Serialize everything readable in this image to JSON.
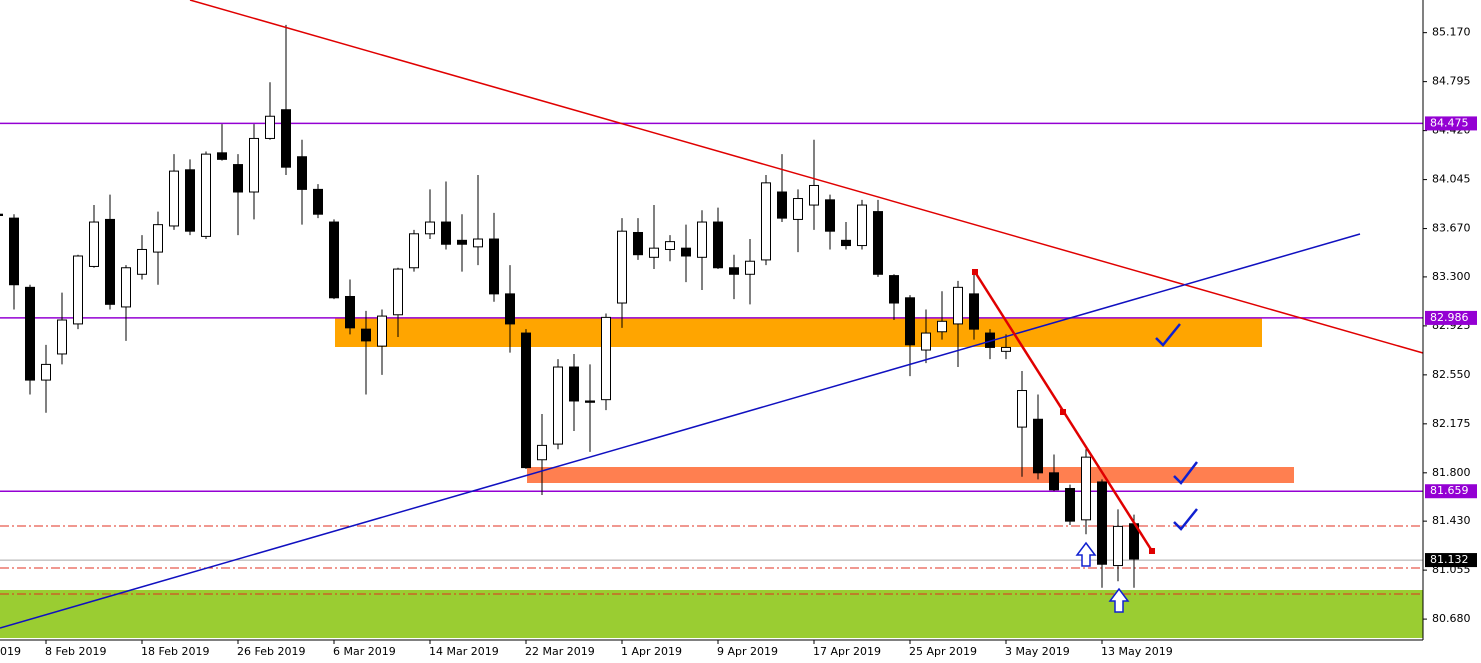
{
  "chart_data": {
    "type": "candlestick",
    "up_color": "#ffffff",
    "down_color": "#000000",
    "categories": [
      "019",
      null,
      null,
      "8 Feb 2019",
      null,
      null,
      null,
      null,
      null,
      "18 Feb 2019",
      null,
      null,
      null,
      null,
      null,
      "26 Feb 2019",
      null,
      null,
      null,
      null,
      null,
      "6 Mar 2019",
      null,
      null,
      null,
      null,
      null,
      "14 Mar 2019",
      null,
      null,
      null,
      null,
      null,
      "22 Mar 2019",
      null,
      null,
      null,
      null,
      null,
      "1 Apr 2019",
      null,
      null,
      null,
      null,
      null,
      "9 Apr 2019",
      null,
      null,
      null,
      null,
      null,
      "17 Apr 2019",
      null,
      null,
      null,
      null,
      null,
      "25 Apr 2019",
      null,
      null,
      null,
      null,
      null,
      "3 May 2019",
      null,
      null,
      null,
      null,
      null,
      "13 May 2019",
      null,
      null
    ],
    "open": [
      83.78,
      83.75,
      83.22,
      82.51,
      82.71,
      82.94,
      83.38,
      83.74,
      83.07,
      83.32,
      83.49,
      83.69,
      84.12,
      83.61,
      84.25,
      84.16,
      83.95,
      84.36,
      84.58,
      84.22,
      83.97,
      83.72,
      83.15,
      82.9,
      82.77,
      83.01,
      83.37,
      83.63,
      83.72,
      83.58,
      83.53,
      83.59,
      83.17,
      82.87,
      81.9,
      82.02,
      82.61,
      82.35,
      82.36,
      83.1,
      83.64,
      83.45,
      83.51,
      83.52,
      83.45,
      83.72,
      83.37,
      83.32,
      83.43,
      83.95,
      83.74,
      83.85,
      83.89,
      83.58,
      83.54,
      83.8,
      83.31,
      83.14,
      82.74,
      82.88,
      82.94,
      83.17,
      82.87,
      82.73,
      82.15,
      82.21,
      81.8,
      81.68,
      81.44,
      81.73,
      81.09,
      81.41
    ],
    "high": [
      83.79,
      83.78,
      83.24,
      82.78,
      83.18,
      83.47,
      83.85,
      83.93,
      83.39,
      83.62,
      83.8,
      84.24,
      84.2,
      84.26,
      84.47,
      84.24,
      84.47,
      84.79,
      85.23,
      84.35,
      84.01,
      83.74,
      83.28,
      83.04,
      83.05,
      83.37,
      83.66,
      83.97,
      84.03,
      83.78,
      84.08,
      83.79,
      83.39,
      82.9,
      82.25,
      82.67,
      82.71,
      82.63,
      83.02,
      83.75,
      83.75,
      83.85,
      83.62,
      83.7,
      83.81,
      83.83,
      83.47,
      83.59,
      84.08,
      84.24,
      83.97,
      84.35,
      83.93,
      83.72,
      83.89,
      83.89,
      83.32,
      83.16,
      83.05,
      83.19,
      83.27,
      83.32,
      82.9,
      82.86,
      82.58,
      82.4,
      81.94,
      81.71,
      81.98,
      81.75,
      81.52,
      81.48
    ],
    "low": [
      83.75,
      83.05,
      82.4,
      82.26,
      82.63,
      82.9,
      83.37,
      83.05,
      82.81,
      83.28,
      83.24,
      83.66,
      83.62,
      83.59,
      84.19,
      83.62,
      83.74,
      84.35,
      84.08,
      83.7,
      83.75,
      83.13,
      82.86,
      82.4,
      82.55,
      82.84,
      83.34,
      83.59,
      83.51,
      83.34,
      83.39,
      83.11,
      82.72,
      81.83,
      81.63,
      81.98,
      82.12,
      81.96,
      82.28,
      82.91,
      83.43,
      83.36,
      83.42,
      83.26,
      83.2,
      83.36,
      83.13,
      83.09,
      83.39,
      83.72,
      83.49,
      83.66,
      83.51,
      83.51,
      83.51,
      83.3,
      82.97,
      82.54,
      82.64,
      82.82,
      82.61,
      82.82,
      82.67,
      82.67,
      81.77,
      81.75,
      81.66,
      81.4,
      81.33,
      80.92,
      80.97,
      80.92
    ],
    "close": [
      83.77,
      83.24,
      82.51,
      82.63,
      82.97,
      83.46,
      83.72,
      83.09,
      83.37,
      83.51,
      83.7,
      84.11,
      83.65,
      84.24,
      84.2,
      83.95,
      84.36,
      84.53,
      84.14,
      83.97,
      83.78,
      83.14,
      82.91,
      82.81,
      83.0,
      83.36,
      83.63,
      83.72,
      83.55,
      83.55,
      83.59,
      83.17,
      82.94,
      81.84,
      82.01,
      82.61,
      82.35,
      82.34,
      82.99,
      83.65,
      83.47,
      83.52,
      83.57,
      83.46,
      83.72,
      83.37,
      83.32,
      83.42,
      84.02,
      83.75,
      83.9,
      84.0,
      83.65,
      83.54,
      83.85,
      83.32,
      83.1,
      82.78,
      82.87,
      82.96,
      83.22,
      82.9,
      82.76,
      82.76,
      82.43,
      81.8,
      81.67,
      81.43,
      81.92,
      81.1,
      81.39,
      81.14
    ],
    "ylim": [
      80.52,
      85.42
    ],
    "yticks": [
      {
        "value": 85.17,
        "label": "85.170"
      },
      84.795,
      {
        "value": 84.42,
        "label": "84.420"
      },
      84.045,
      {
        "value": 83.67,
        "label": "83.670"
      },
      {
        "value": 83.3,
        "label": "83.300"
      },
      82.925,
      {
        "value": 82.55,
        "label": "82.550"
      },
      82.175,
      {
        "value": 81.8,
        "label": "81.800"
      },
      {
        "value": 81.43,
        "label": "81.430"
      },
      81.055,
      {
        "value": 80.68,
        "label": "80.680"
      }
    ],
    "levels": [
      {
        "value": 84.475,
        "color": "#9400d3",
        "label_color": "#9400d3"
      },
      {
        "value": 82.986,
        "color": "#9400d3",
        "label_color": "#9400d3"
      },
      {
        "value": 81.659,
        "color": "#9400d3",
        "label_color": "#9400d3"
      },
      {
        "value": 81.132,
        "color": "#a8a8a8",
        "label_color": "#000000"
      }
    ]
  }
}
